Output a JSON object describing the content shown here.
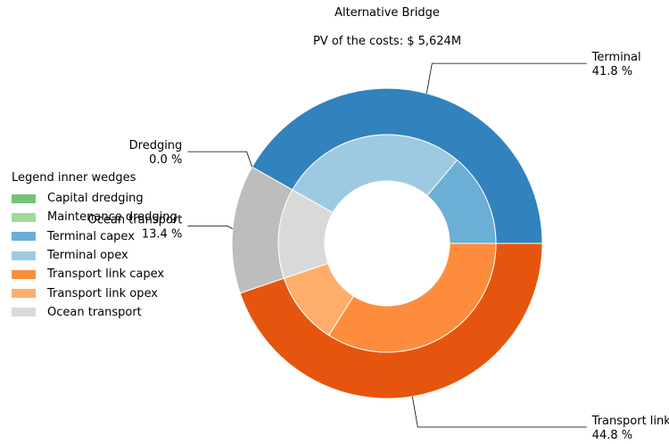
{
  "chart_data": {
    "type": "pie",
    "variant": "nested-donut",
    "title": "Alternative Bridge",
    "subtitle": "PV of the costs: $ 5,624M",
    "outer_ring": {
      "slices": [
        {
          "name": "Terminal",
          "value": 41.8,
          "pct_label": "41.8 %",
          "color": "#3182bd"
        },
        {
          "name": "Dredging",
          "value": 0.0,
          "pct_label": "0.0 %",
          "color": "#31a354"
        },
        {
          "name": "Ocean transport",
          "value": 13.4,
          "pct_label": "13.4 %",
          "color": "#bdbdbd"
        },
        {
          "name": "Transport link",
          "value": 44.8,
          "pct_label": "44.8 %",
          "color": "#e6550d"
        }
      ]
    },
    "inner_ring": {
      "slices": [
        {
          "name": "Terminal capex",
          "value": 13.9,
          "color": "#6baed6"
        },
        {
          "name": "Terminal opex",
          "value": 27.9,
          "color": "#9ecae1"
        },
        {
          "name": "Capital dredging",
          "value": 0.0,
          "color": "#74c476"
        },
        {
          "name": "Maintenance dredging",
          "value": 0.0,
          "color": "#a1d99b"
        },
        {
          "name": "Ocean transport",
          "value": 13.4,
          "color": "#d9d9d9"
        },
        {
          "name": "Transport link opex",
          "value": 10.8,
          "color": "#fdae6b"
        },
        {
          "name": "Transport link capex",
          "value": 34.0,
          "color": "#fd8d3c"
        }
      ]
    },
    "legend": {
      "title": "Legend inner wedges",
      "placement": "left",
      "items": [
        {
          "label": "Capital dredging",
          "color": "#74c476"
        },
        {
          "label": "Maintenance dredging",
          "color": "#a1d99b"
        },
        {
          "label": "Terminal capex",
          "color": "#6baed6"
        },
        {
          "label": "Terminal opex",
          "color": "#9ecae1"
        },
        {
          "label": "Transport link capex",
          "color": "#fd8d3c"
        },
        {
          "label": "Transport link opex",
          "color": "#fdae6b"
        },
        {
          "label": "Ocean transport",
          "color": "#d9d9d9"
        }
      ]
    }
  }
}
